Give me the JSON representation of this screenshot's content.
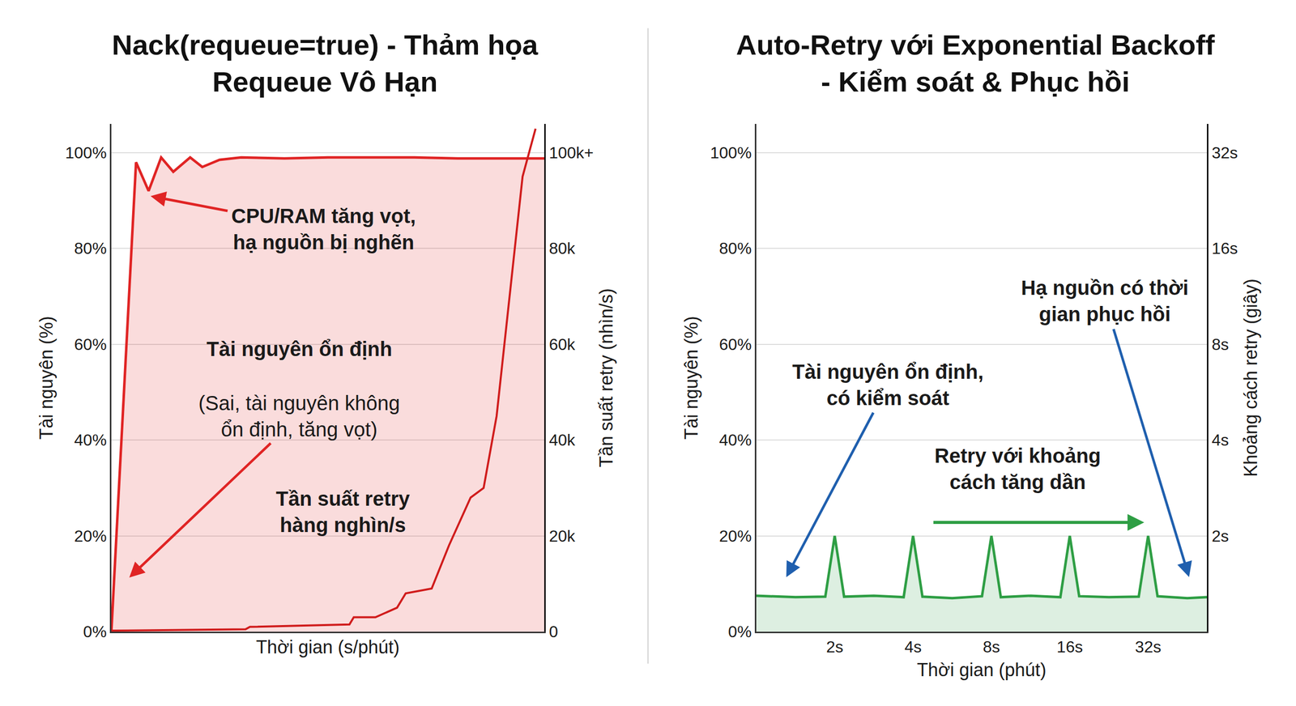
{
  "chart_data": [
    {
      "type": "line",
      "title": "Nack(requeue=true) - Thảm họa Requeue Vô Hạn",
      "x_label": "Thời gian (s/phút)",
      "y_label": "Tài nguyên (%)",
      "y2_label": "Tần suất retry (nhìn/s)",
      "xlim": [
        0,
        10
      ],
      "xticks": [],
      "ylim": [
        0,
        106
      ],
      "yticks": [
        {
          "value": 0,
          "label": "0%"
        },
        {
          "value": 20,
          "label": "20%"
        },
        {
          "value": 40,
          "label": "40%"
        },
        {
          "value": 60,
          "label": "60%"
        },
        {
          "value": 80,
          "label": "80%"
        },
        {
          "value": 100,
          "label": "100%"
        }
      ],
      "y2lim": [
        0,
        106000
      ],
      "y2ticks": [
        0,
        {
          "value": 20000,
          "label": "20k"
        },
        {
          "value": 40000,
          "label": "40k"
        },
        {
          "value": 60000,
          "label": "60k"
        },
        {
          "value": 80000,
          "label": "80k"
        },
        {
          "value": 100000,
          "label": "100k+"
        }
      ],
      "grid": true,
      "series": [
        {
          "color": "#e02424",
          "x": [
            0,
            0.57,
            0.86,
            1.15,
            1.43,
            1.82,
            2.1,
            2.5,
            3,
            4,
            5,
            6,
            7,
            8,
            9,
            10
          ],
          "values": [
            0,
            98,
            92,
            99,
            96,
            99,
            97,
            98.5,
            99,
            98.8,
            99,
            99,
            99,
            98.8,
            98.8,
            98.8
          ]
        },
        {
          "color": "#d01c1c",
          "axis": "y2",
          "x": [
            0,
            3.1,
            3.2,
            5.5,
            5.6,
            6.1,
            6.6,
            6.8,
            7.4,
            7.8,
            8.3,
            8.6,
            8.9,
            9.2,
            9.5,
            9.8
          ],
          "values": [
            200,
            500,
            1000,
            1500,
            3000,
            3000,
            5000,
            8000,
            9000,
            18000,
            28000,
            30000,
            45000,
            70000,
            95000,
            105000
          ]
        }
      ],
      "annotations": [
        "CPU/RAM tăng vọt, hạ nguồn bị nghẽn",
        "Tài nguyên ổn định",
        "(Sai, tài nguyên không ổn định, tăng vọt)",
        "Tần suất retry hàng nghìn/s"
      ]
    },
    {
      "type": "line",
      "title": "Auto-Retry với Exponential Backoff - Kiểm soát & Phục hồi",
      "x_label": "Thời gian (phút)",
      "y_label": "Tài nguyên (%)",
      "y2_label": "Khoảng cách retry (giây)",
      "xlim": [
        0,
        5.75
      ],
      "xticks": [
        {
          "value": 1,
          "label": "2s"
        },
        {
          "value": 2,
          "label": "4s"
        },
        {
          "value": 3,
          "label": "8s"
        },
        {
          "value": 4,
          "label": "16s"
        },
        {
          "value": 5,
          "label": "32s"
        }
      ],
      "ylim": [
        0,
        106
      ],
      "yticks": [
        {
          "value": 0,
          "label": "0%"
        },
        {
          "value": 20,
          "label": "20%"
        },
        {
          "value": 40,
          "label": "40%"
        },
        {
          "value": 60,
          "label": "60%"
        },
        {
          "value": 80,
          "label": "80%"
        },
        {
          "value": 100,
          "label": "100%"
        }
      ],
      "y2lim": [
        1,
        39.4
      ],
      "y2ticks": [
        {
          "value": 2,
          "label": "2s"
        },
        {
          "value": 4,
          "label": "4s"
        },
        {
          "value": 8,
          "label": "8s"
        },
        {
          "value": 16,
          "label": "16s"
        },
        {
          "value": 32,
          "label": "32s"
        }
      ],
      "log": "y2",
      "grid": true,
      "series": [
        {
          "color": "#2e9e44",
          "x": [
            0,
            0.5,
            0.88,
            1,
            1.12,
            1.5,
            1.88,
            2,
            2.12,
            2.5,
            2.88,
            3,
            3.12,
            3.5,
            3.88,
            4,
            4.12,
            4.5,
            4.88,
            5,
            5.12,
            5.5,
            5.75
          ],
          "values": [
            7.5,
            7.2,
            7.3,
            20,
            7.3,
            7.5,
            7.2,
            20,
            7.3,
            7.0,
            7.4,
            20,
            7.2,
            7.5,
            7.2,
            20,
            7.4,
            7.2,
            7.3,
            20,
            7.4,
            7.0,
            7.2
          ]
        }
      ],
      "annotations": [
        "Tài nguyên ổn định, có kiểm soát",
        "Retry với khoảng cách tăng dần",
        "Hạ nguồn có thời gian phục hồi"
      ]
    }
  ]
}
